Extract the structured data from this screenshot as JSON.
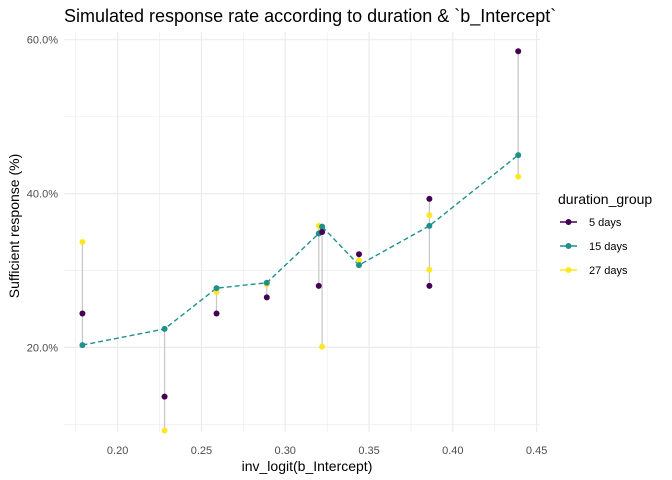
{
  "chart_data": {
    "type": "scatter",
    "title": "Simulated response rate according to duration & `b_Intercept`",
    "xlabel": "inv_logit(b_Intercept)",
    "ylabel": "Sufficient response (%)",
    "xlim": [
      0.168,
      0.452
    ],
    "ylim": [
      0.09,
      0.61
    ],
    "x_ticks": [
      0.2,
      0.25,
      0.3,
      0.35,
      0.4,
      0.45
    ],
    "x_tick_labels": [
      "0.20",
      "0.25",
      "0.30",
      "0.35",
      "0.40",
      "0.45"
    ],
    "y_ticks": [
      0.2,
      0.4,
      0.6
    ],
    "y_tick_labels": [
      "20.0%",
      "40.0%",
      "60.0%"
    ],
    "grid": true,
    "legend": {
      "title": "duration_group",
      "placement": "right"
    },
    "series": [
      {
        "name": "5 days",
        "color": "#440154",
        "points": [
          [
            0.179,
            0.244
          ],
          [
            0.228,
            0.136
          ],
          [
            0.259,
            0.244
          ],
          [
            0.289,
            0.265
          ],
          [
            0.32,
            0.28
          ],
          [
            0.322,
            0.35
          ],
          [
            0.344,
            0.321
          ],
          [
            0.386,
            0.393
          ],
          [
            0.386,
            0.28
          ],
          [
            0.439,
            0.585
          ]
        ]
      },
      {
        "name": "15 days",
        "color": "#21908C",
        "connected": true,
        "dashed": true,
        "points": [
          [
            0.179,
            0.203
          ],
          [
            0.228,
            0.224
          ],
          [
            0.259,
            0.277
          ],
          [
            0.289,
            0.284
          ],
          [
            0.32,
            0.348
          ],
          [
            0.322,
            0.357
          ],
          [
            0.344,
            0.307
          ],
          [
            0.386,
            0.358
          ],
          [
            0.439,
            0.45
          ]
        ]
      },
      {
        "name": "27 days",
        "color": "#FDE725",
        "points": [
          [
            0.179,
            0.337
          ],
          [
            0.228,
            0.092
          ],
          [
            0.259,
            0.272
          ],
          [
            0.289,
            0.282
          ],
          [
            0.32,
            0.358
          ],
          [
            0.322,
            0.201
          ],
          [
            0.344,
            0.313
          ],
          [
            0.386,
            0.301
          ],
          [
            0.386,
            0.372
          ],
          [
            0.439,
            0.422
          ]
        ]
      }
    ],
    "range_segments": [
      {
        "x": 0.179,
        "y": [
          0.203,
          0.337
        ]
      },
      {
        "x": 0.228,
        "y": [
          0.092,
          0.224
        ]
      },
      {
        "x": 0.259,
        "y": [
          0.244,
          0.277
        ]
      },
      {
        "x": 0.289,
        "y": [
          0.265,
          0.284
        ]
      },
      {
        "x": 0.32,
        "y": [
          0.28,
          0.358
        ]
      },
      {
        "x": 0.322,
        "y": [
          0.201,
          0.357
        ]
      },
      {
        "x": 0.344,
        "y": [
          0.307,
          0.321
        ]
      },
      {
        "x": 0.386,
        "y": [
          0.28,
          0.393
        ]
      },
      {
        "x": 0.439,
        "y": [
          0.422,
          0.585
        ]
      }
    ],
    "range_segment_color": "#c8c8c8",
    "grid_color": "#ebebeb"
  }
}
